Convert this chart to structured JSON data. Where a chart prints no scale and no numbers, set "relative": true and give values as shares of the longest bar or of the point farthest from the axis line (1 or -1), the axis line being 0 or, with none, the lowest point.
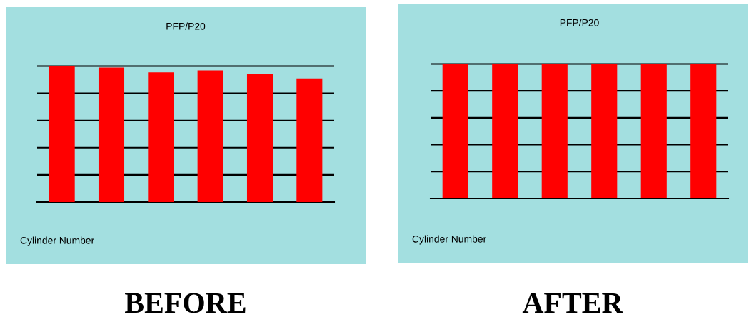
{
  "chart_data": [
    {
      "type": "bar",
      "title": "PFP/P20",
      "xlabel": "Cylinder Number",
      "categories": [
        null,
        null,
        null,
        null,
        null,
        null
      ],
      "relative": true,
      "grid": "y",
      "annotations": [
        "BEFORE"
      ],
      "series": [
        {
          "color": "#ff0000",
          "values": [
            1,
            0.989,
            0.954,
            0.968,
            0.943,
            0.91
          ]
        }
      ]
    },
    {
      "type": "bar",
      "title": "PFP/P20",
      "xlabel": "Cylinder Number",
      "categories": [
        null,
        null,
        null,
        null,
        null,
        null
      ],
      "relative": true,
      "grid": "y",
      "annotations": [
        "AFTER"
      ],
      "series": [
        {
          "color": "#ff0000",
          "values": [
            1,
            1,
            1,
            1,
            1,
            1
          ]
        }
      ]
    }
  ]
}
